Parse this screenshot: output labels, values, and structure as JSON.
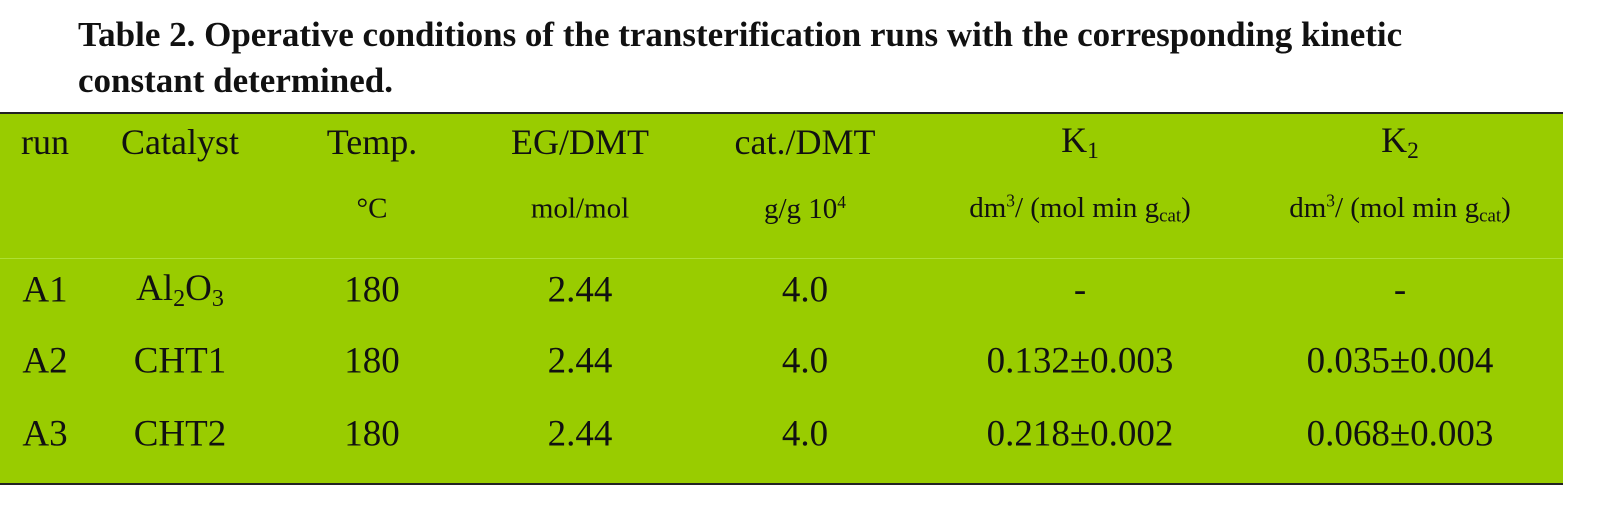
{
  "title": "Table 2. Operative conditions of the transterification runs with the corresponding kinetic constant determined.",
  "table": {
    "header": [
      "run",
      "Catalyst",
      "Temp.",
      "EG/DMT",
      "cat./DMT",
      [
        {
          "text": "K"
        },
        {
          "sub": "1"
        }
      ],
      [
        {
          "text": "K"
        },
        {
          "sub": "2"
        }
      ]
    ],
    "units": [
      null,
      null,
      "°C",
      "mol/mol",
      [
        {
          "text": "g/g 10"
        },
        {
          "sup": "4"
        }
      ],
      [
        {
          "text": "dm"
        },
        {
          "sup": "3"
        },
        {
          "text": "/ (mol min g"
        },
        {
          "sub": "cat"
        },
        {
          "text": ")"
        }
      ],
      [
        {
          "text": "dm"
        },
        {
          "sup": "3"
        },
        {
          "text": "/ (mol min g"
        },
        {
          "sub": "cat"
        },
        {
          "text": ")"
        }
      ]
    ],
    "rows": [
      [
        "A1",
        [
          {
            "text": "Al"
          },
          {
            "sub": "2"
          },
          {
            "text": "O"
          },
          {
            "sub": "3"
          }
        ],
        "180",
        "2.44",
        "4.0",
        "-",
        "-"
      ],
      [
        "A2",
        "CHT1",
        "180",
        "2.44",
        "4.0",
        "0.132±0.003",
        "0.035±0.004"
      ],
      [
        "A3",
        "CHT2",
        "180",
        "2.44",
        "4.0",
        "0.218±0.002",
        "0.068±0.003"
      ]
    ]
  }
}
